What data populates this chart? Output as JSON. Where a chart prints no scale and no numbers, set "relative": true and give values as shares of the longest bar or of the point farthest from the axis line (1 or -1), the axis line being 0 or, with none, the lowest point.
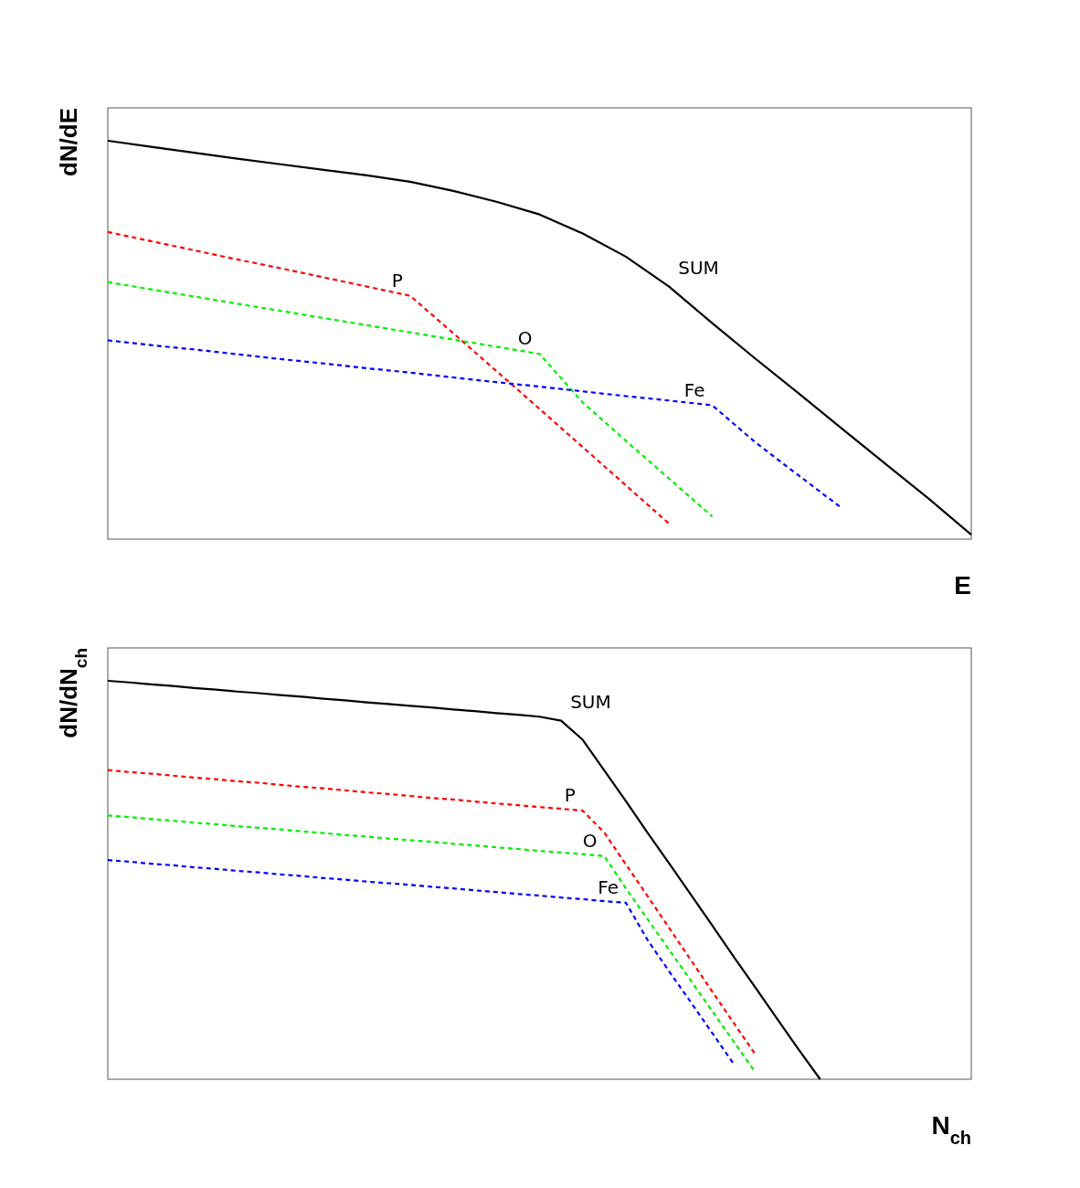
{
  "chart_data": [
    {
      "type": "line",
      "relative": true,
      "xlabel": "E",
      "ylabel": "dN/dE",
      "categories": [
        null,
        null,
        null,
        null,
        null,
        null,
        null,
        null,
        null,
        null,
        null,
        null,
        null,
        null,
        null,
        null,
        null,
        null,
        null,
        null,
        null
      ],
      "series": [
        {
          "name": "SUM",
          "color": "#000000",
          "line_style": "solid",
          "values": [
            1.0,
            0.985,
            0.97,
            0.955,
            0.941,
            0.927,
            0.913,
            0.897,
            0.874,
            0.847,
            0.815,
            0.767,
            0.709,
            0.634,
            0.542,
            0.453,
            0.366,
            0.278,
            0.19,
            0.103,
            0.011
          ]
        },
        {
          "name": "P",
          "color": "#ff0000",
          "line_style": "dashed",
          "values": [
            0.771,
            0.748,
            0.725,
            0.702,
            0.68,
            0.657,
            0.634,
            0.611,
            0.517,
            0.422,
            0.327,
            0.231,
            0.135,
            0.039,
            null,
            null,
            null,
            null,
            null,
            null,
            null
          ]
        },
        {
          "name": "O",
          "color": "#00ee00",
          "line_style": "dashed",
          "values": [
            0.645,
            0.627,
            0.609,
            0.591,
            0.573,
            0.555,
            0.537,
            0.519,
            0.501,
            0.483,
            0.465,
            0.343,
            0.247,
            0.152,
            0.057,
            null,
            null,
            null,
            null,
            null,
            null
          ]
        },
        {
          "name": "Fe",
          "color": "#0000ff",
          "line_style": "dashed",
          "values": [
            0.499,
            0.487,
            0.476,
            0.464,
            0.452,
            0.441,
            0.429,
            0.418,
            0.406,
            0.394,
            0.383,
            0.371,
            0.359,
            0.348,
            0.336,
            0.243,
            0.16,
            0.078,
            null,
            null,
            null
          ]
        }
      ]
    },
    {
      "type": "line",
      "relative": true,
      "xlabel": "N$_{ch}$",
      "ylabel": "dN/dN$_{ch}$",
      "categories": [
        null,
        null,
        null,
        null,
        null,
        null,
        null,
        null,
        null,
        null,
        null,
        null,
        null,
        null,
        null,
        null,
        null,
        null,
        null,
        null,
        null,
        null,
        null,
        null,
        null,
        null,
        null,
        null,
        null,
        null,
        null,
        null,
        null,
        null,
        null,
        null,
        null,
        null,
        null,
        null,
        null
      ],
      "series": [
        {
          "name": "SUM",
          "color": "#000000",
          "line_style": "solid",
          "values": [
            1.0,
            0.996,
            0.991,
            0.987,
            0.982,
            0.978,
            0.973,
            0.969,
            0.964,
            0.96,
            0.955,
            0.951,
            0.946,
            0.942,
            0.937,
            0.933,
            0.928,
            0.924,
            0.919,
            0.915,
            0.91,
            0.9,
            0.852,
            0.775,
            0.698,
            0.619,
            0.542,
            0.464,
            0.386,
            0.307,
            0.23,
            0.152,
            0.075,
            0,
            null,
            null,
            null,
            null,
            null,
            null,
            null
          ]
        },
        {
          "name": "P",
          "color": "#ff0000",
          "line_style": "dashed",
          "values": [
            0.776,
            0.771,
            0.767,
            0.762,
            0.757,
            0.753,
            0.748,
            0.744,
            0.739,
            0.734,
            0.73,
            0.725,
            0.72,
            0.716,
            0.711,
            0.706,
            0.702,
            0.697,
            0.692,
            0.688,
            0.683,
            0.679,
            0.674,
            0.619,
            0.539,
            0.46,
            0.38,
            0.3,
            0.22,
            0.141,
            0.062,
            null,
            null,
            null,
            null,
            null,
            null,
            null,
            null,
            null,
            null
          ]
        },
        {
          "name": "O",
          "color": "#00ee00",
          "line_style": "dashed",
          "values": [
            0.662,
            0.658,
            0.653,
            0.649,
            0.644,
            0.64,
            0.635,
            0.631,
            0.627,
            0.622,
            0.618,
            0.613,
            0.609,
            0.604,
            0.6,
            0.596,
            0.591,
            0.587,
            0.582,
            0.578,
            0.573,
            0.569,
            0.565,
            0.56,
            0.479,
            0.402,
            0.325,
            0.248,
            0.171,
            0.094,
            0.017,
            null,
            null,
            null,
            null,
            null,
            null,
            null,
            null,
            null,
            null
          ]
        },
        {
          "name": "Fe",
          "color": "#0000ff",
          "line_style": "dashed",
          "values": [
            0.55,
            0.546,
            0.541,
            0.537,
            0.532,
            0.528,
            0.523,
            0.519,
            0.514,
            0.51,
            0.505,
            0.501,
            0.496,
            0.492,
            0.488,
            0.483,
            0.479,
            0.474,
            0.47,
            0.465,
            0.461,
            0.456,
            0.452,
            0.447,
            0.443,
            0.35,
            0.271,
            0.194,
            0.116,
            0.038,
            null,
            null,
            null,
            null,
            null,
            null,
            null,
            null,
            null,
            null,
            null
          ]
        }
      ]
    }
  ]
}
